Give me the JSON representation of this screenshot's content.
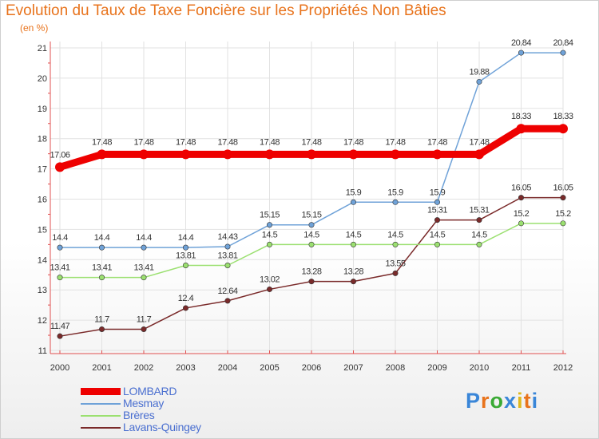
{
  "chart_data": {
    "type": "line",
    "title": "Evolution du Taux de Taxe Foncière sur les Propriétés Non Bâties",
    "subtitle": "(en %)",
    "xlabel": "",
    "ylabel": "",
    "ylim": [
      11,
      21
    ],
    "y_ticks": [
      "11",
      "12",
      "13",
      "14",
      "15",
      "16",
      "17",
      "18",
      "19",
      "20",
      "21"
    ],
    "categories": [
      "2000",
      "2001",
      "2002",
      "2003",
      "2004",
      "2005",
      "2006",
      "2007",
      "2008",
      "2009",
      "2010",
      "2011",
      "2012"
    ],
    "grid": true,
    "series": [
      {
        "name": "LOMBARD",
        "color": "#ee0000",
        "values": [
          17.06,
          17.48,
          17.48,
          17.48,
          17.48,
          17.48,
          17.48,
          17.48,
          17.48,
          17.48,
          17.48,
          18.33,
          18.33
        ],
        "labels": [
          "17.06",
          "17.48",
          "17.48",
          "17.48",
          "17.48",
          "17.48",
          "17.48",
          "17.48",
          "17.48",
          "17.48",
          "17.48",
          "18.33",
          "18.33"
        ]
      },
      {
        "name": "Mesmay",
        "color": "#6fa2d8",
        "values": [
          14.4,
          14.4,
          14.4,
          14.4,
          14.43,
          15.15,
          15.15,
          15.9,
          15.9,
          15.9,
          19.88,
          20.84,
          20.84
        ],
        "labels": [
          "14.4",
          "14.4",
          "14.4",
          "14.4",
          "14.43",
          "15.15",
          "15.15",
          "15.9",
          "15.9",
          "15.9",
          "19.88",
          "20.84",
          "20.84"
        ]
      },
      {
        "name": "Brères",
        "color": "#9be070",
        "values": [
          13.41,
          13.41,
          13.41,
          13.81,
          13.81,
          14.5,
          14.5,
          14.5,
          14.5,
          14.5,
          14.5,
          15.2,
          15.2
        ],
        "labels": [
          "13.41",
          "13.41",
          "13.41",
          "13.81",
          "13.81",
          "14.5",
          "14.5",
          "14.5",
          "14.5",
          "14.5",
          "14.5",
          "15.2",
          "15.2"
        ]
      },
      {
        "name": "Lavans-Quingey",
        "color": "#7a2a2a",
        "values": [
          11.47,
          11.7,
          11.7,
          12.4,
          12.64,
          13.02,
          13.28,
          13.28,
          13.55,
          15.31,
          15.31,
          16.05,
          16.05
        ],
        "labels": [
          "11.47",
          "11.7",
          "11.7",
          "12.4",
          "12.64",
          "13.02",
          "13.28",
          "13.28",
          "13.55",
          "15.31",
          "15.31",
          "16.05",
          "16.05"
        ]
      }
    ]
  },
  "legend": {
    "items": [
      {
        "label": "LOMBARD",
        "color": "#ee0000"
      },
      {
        "label": "Mesmay",
        "color": "#6fa2d8"
      },
      {
        "label": "Brères",
        "color": "#9be070"
      },
      {
        "label": "Lavans-Quingey",
        "color": "#7a2a2a"
      }
    ]
  },
  "logo": {
    "text": "Proxiti"
  }
}
